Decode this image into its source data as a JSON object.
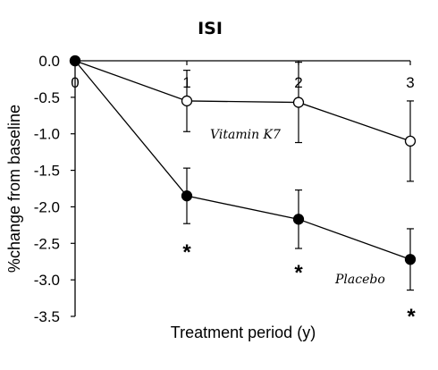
{
  "chart_data": {
    "type": "line",
    "title": "ISI",
    "xlabel": "Treatment period (y)",
    "ylabel": "%change from baseline",
    "x": [
      0,
      1,
      2,
      3
    ],
    "x_ticks": [
      "0",
      "1",
      "2",
      "3"
    ],
    "xlim": [
      0,
      3
    ],
    "y_ticks": [
      "0.0",
      "-0.5",
      "-1.0",
      "-1.5",
      "-2.0",
      "-2.5",
      "-3.0",
      "-3.5"
    ],
    "ylim": [
      -3.5,
      0
    ],
    "grid": false,
    "series": [
      {
        "name": "Vitamin K7",
        "marker": "open-circle",
        "values": [
          0,
          -0.55,
          -0.57,
          -1.1
        ],
        "error": [
          0,
          0.42,
          0.55,
          0.55
        ]
      },
      {
        "name": "Placebo",
        "marker": "filled-circle",
        "values": [
          0,
          -1.85,
          -2.17,
          -2.72
        ],
        "error": [
          0,
          0.38,
          0.4,
          0.42
        ]
      }
    ],
    "annotations": [
      "*",
      "*",
      "*"
    ],
    "colors": {
      "line": "#000000",
      "open_marker_fill": "#ffffff",
      "filled_marker_fill": "#000000"
    }
  }
}
